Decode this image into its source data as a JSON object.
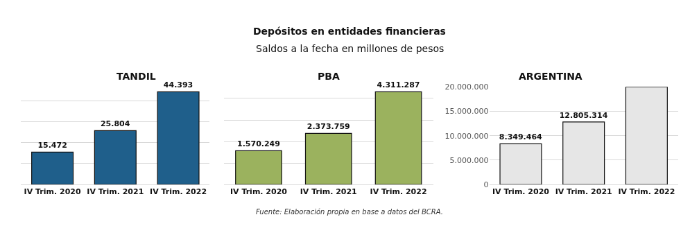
{
  "chart_data": [
    {
      "type": "bar",
      "title": "TANDIL",
      "categories": [
        "IV Trim. 2020",
        "IV Trim. 2021",
        "IV Trim. 2022"
      ],
      "values": [
        15472,
        25804,
        44393
      ],
      "value_labels": [
        "15.472",
        "25.804",
        "44.393"
      ],
      "color": "#1f5f8b",
      "tick_labels": "x",
      "grid": "y"
    },
    {
      "type": "bar",
      "title": "PBA",
      "categories": [
        "IV Trim. 2020",
        "IV Trim. 2021",
        "IV Trim. 2022"
      ],
      "values": [
        1570249,
        2373759,
        4311287
      ],
      "value_labels": [
        "1.570.249",
        "2.373.759",
        "4.311.287"
      ],
      "color": "#9bb25e",
      "tick_labels": "x",
      "grid": "y"
    },
    {
      "type": "bar",
      "title": "ARGENTINA",
      "categories": [
        "IV Trim. 2020",
        "IV Trim. 2021",
        "IV Trim. 2022"
      ],
      "values": [
        8349464,
        12805314,
        20000000
      ],
      "value_labels": [
        "8.349.464",
        "12.805.314",
        null
      ],
      "color": "#e6e6e6",
      "ylim": [
        0,
        20000000
      ],
      "yticks": [
        0,
        {
          "value": 5000000,
          "label": "5.000.000"
        },
        {
          "value": 10000000,
          "label": "10.000.000"
        },
        {
          "value": 15000000,
          "label": "15.000.000"
        },
        {
          "value": 20000000,
          "label": "20.000.000"
        }
      ],
      "grid": "y"
    },
    {
      "type": "other",
      "title": "Depósitos en entidades financieras",
      "subtitle": "Saldos a la fecha en millones de pesos",
      "annotations": [
        "Fuente: Elaboración propia en base a datos del BCRA."
      ]
    }
  ]
}
